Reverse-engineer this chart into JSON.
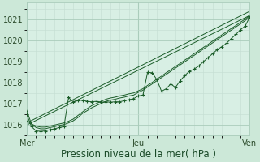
{
  "xlabel": "Pression niveau de la mer( hPa )",
  "bg_color": "#cce8d8",
  "plot_bg_color": "#d8efe4",
  "grid_major_color": "#aaccbb",
  "grid_minor_color": "#c4ddd2",
  "line_color": "#1a5c28",
  "ylim": [
    1015.5,
    1021.8
  ],
  "xlim": [
    0,
    48
  ],
  "yticks": [
    1016,
    1017,
    1018,
    1019,
    1020,
    1021
  ],
  "xtick_positions": [
    0,
    24,
    48
  ],
  "xtick_labels": [
    "Mer",
    "Jeu",
    "Ven"
  ],
  "font_size_label": 8.5,
  "font_size_tick": 7,
  "s_jagged": [
    1016.5,
    1015.93,
    1015.72,
    1015.7,
    1015.72,
    1015.78,
    1015.82,
    1015.88,
    1015.92,
    1017.3,
    1017.1,
    1017.15,
    1017.18,
    1017.12,
    1017.1,
    1017.12,
    1017.08,
    1017.1,
    1017.08,
    1017.1,
    1017.1,
    1017.15,
    1017.2,
    1017.25,
    1017.38,
    1017.42,
    1018.5,
    1018.48,
    1018.15,
    1017.6,
    1017.72,
    1017.95,
    1017.78,
    1018.1,
    1018.35,
    1018.55,
    1018.65,
    1018.8,
    1019.0,
    1019.2,
    1019.38,
    1019.58,
    1019.72,
    1019.88,
    1020.1,
    1020.3,
    1020.52,
    1020.7,
    1021.12
  ],
  "s_upper": [
    1016.2,
    1016.05,
    1015.95,
    1015.9,
    1015.9,
    1015.95,
    1016.0,
    1016.05,
    1016.1,
    1016.18,
    1016.28,
    1016.45,
    1016.62,
    1016.78,
    1016.92,
    1017.02,
    1017.12,
    1017.22,
    1017.28,
    1017.32,
    1017.38,
    1017.42,
    1017.48,
    1017.52,
    1017.62,
    1017.72,
    1017.88,
    1018.02,
    1018.18,
    1018.32,
    1018.48,
    1018.62,
    1018.78,
    1018.92,
    1019.08,
    1019.22,
    1019.38,
    1019.52,
    1019.68,
    1019.82,
    1019.98,
    1020.12,
    1020.28,
    1020.42,
    1020.58,
    1020.72,
    1020.88,
    1021.02,
    1021.22
  ],
  "s_lower": [
    1016.7,
    1016.05,
    1015.88,
    1015.82,
    1015.82,
    1015.88,
    1015.92,
    1015.98,
    1016.02,
    1016.1,
    1016.2,
    1016.35,
    1016.55,
    1016.68,
    1016.82,
    1016.92,
    1017.02,
    1017.12,
    1017.18,
    1017.22,
    1017.28,
    1017.32,
    1017.38,
    1017.42,
    1017.55,
    1017.65,
    1017.8,
    1017.95,
    1018.1,
    1018.25,
    1018.4,
    1018.55,
    1018.7,
    1018.85,
    1019.0,
    1019.15,
    1019.3,
    1019.45,
    1019.6,
    1019.75,
    1019.9,
    1020.05,
    1020.2,
    1020.35,
    1020.5,
    1020.65,
    1020.8,
    1020.95,
    1021.15
  ],
  "s_straight1": [
    1016.1,
    1021.4
  ],
  "s_straight2": [
    1016.0,
    1021.2
  ]
}
